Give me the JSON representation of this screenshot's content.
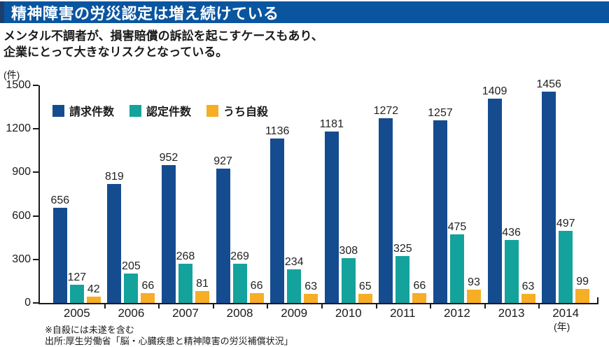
{
  "title": "精神障害の労災認定は増え続けている",
  "subtitle": {
    "line1": "メンタル不調者が、損害賠償の訴訟を起こすケースもあり、",
    "line2": "企業にとって大きなリスクとなっている。"
  },
  "notes": {
    "suicide_note": "※自殺には未遂を含む",
    "source": "出所:厚生労働省「脳・心臓疾患と精神障害の労災補償状況」"
  },
  "colors": {
    "banner_bg": "#0a55a0",
    "banner_stripe": "#1c3e6e",
    "claims": "#154c8f",
    "approved": "#14a39c",
    "suicide": "#f5ae25",
    "axis": "#1a1a1a"
  },
  "chart_data": {
    "type": "bar",
    "title": "精神障害の労災認定は増え続けている",
    "categories": [
      "2005",
      "2006",
      "2007",
      "2008",
      "2009",
      "2010",
      "2011",
      "2012",
      "2013",
      "2014"
    ],
    "series": [
      {
        "name": "請求件数",
        "color_key": "claims",
        "values": [
          656,
          819,
          952,
          927,
          1136,
          1181,
          1272,
          1257,
          1409,
          1456
        ]
      },
      {
        "name": "認定件数",
        "color_key": "approved",
        "values": [
          127,
          205,
          268,
          269,
          234,
          308,
          325,
          475,
          436,
          497
        ]
      },
      {
        "name": "うち自殺",
        "color_key": "suicide",
        "values": [
          42,
          66,
          81,
          66,
          63,
          65,
          66,
          93,
          63,
          99
        ]
      }
    ],
    "ylabel": "(件)",
    "xlabel_unit": "(年)",
    "ylim": [
      0,
      1500
    ],
    "yticks": [
      0,
      300,
      600,
      900,
      1200,
      1500
    ],
    "grid": false,
    "legend_position": "top-left-inside",
    "bar_value_labels": true
  }
}
